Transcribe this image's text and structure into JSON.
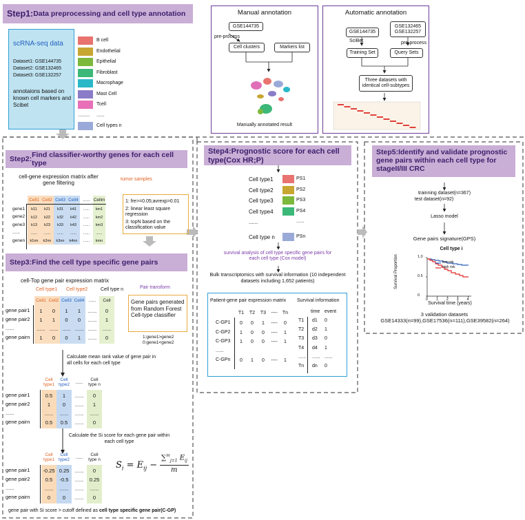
{
  "step1": {
    "title_bold": "Step1:",
    "title_rest": "Data preprocessing and cell type annotation",
    "data_title": "scRNA-seq  data",
    "datasets": [
      "Dataset1: GSE144735",
      "Dataset2: GSE132465",
      "Dataset3: GSE132257"
    ],
    "note": "annotaions based on known cell markers and Scibet",
    "legend": [
      {
        "label": "B cell",
        "color": "#e8736f"
      },
      {
        "label": "Endothelial",
        "color": "#c8a632"
      },
      {
        "label": "Epithelial",
        "color": "#7cb83c"
      },
      {
        "label": "Fibroblast",
        "color": "#3cb878"
      },
      {
        "label": "Macrophage",
        "color": "#2ab8c8"
      },
      {
        "label": "Mast Cell",
        "color": "#8a7cc8"
      },
      {
        "label": "Tcell",
        "color": "#e870b8"
      },
      {
        "label": "......",
        "color": ""
      },
      {
        "label": "Cell types n",
        "color": "#9aaad8"
      }
    ]
  },
  "manual": {
    "title": "Manual annotation",
    "gse": "GSE144735",
    "preprocess": "pre-process",
    "clusters": "Cell clusters",
    "markers": "Markers list",
    "result": "Manually annotated result"
  },
  "auto": {
    "title": "Automatic annotation",
    "gse_left": "GSE144735",
    "gse_right": [
      "GSE132465",
      "GSE132257"
    ],
    "scibet": "SciBet",
    "preprocess": "pre-process",
    "training": "Training Set",
    "query": "Query Sets",
    "result": "Three datasets with identical cell-subtypes"
  },
  "step2": {
    "title_bold": "Step2:",
    "title_rest": "Find classifier-worthy genes for each cell type",
    "matrix_title": "cell-gene expression matrix after gene filtering",
    "tumor": "tumor samples",
    "cols": [
      "Cell1",
      "Cell2",
      "Cell3",
      "Cell4",
      "......",
      "Cellm"
    ],
    "rows": [
      "gene1",
      "gene2",
      "gene3",
      "......",
      "genen"
    ],
    "values": [
      [
        "k11",
        "k21",
        "k31",
        "k41",
        "......",
        "km1"
      ],
      [
        "k12",
        "k22",
        "k32",
        "k42",
        "......",
        "km2"
      ],
      [
        "k13",
        "k23",
        "k33",
        "k43",
        "......",
        "km3"
      ],
      [
        "......",
        "......",
        "......",
        "......",
        "......",
        "......"
      ],
      [
        "k1nn",
        "k2nn",
        "k3nn",
        "k4nn",
        "......",
        "kmn"
      ]
    ],
    "criteria": [
      "1: fre>=0.05;avrexp>0.01",
      "2: linear least square regression",
      "3: topN based on the classification value"
    ]
  },
  "step3": {
    "title_bold": "Step3:",
    "title_rest": "Find the cell type specific gene pairs",
    "matrix_title": "cell-Top gene pair expression matrix",
    "types": [
      "Cell type1",
      "Cell type2",
      "Cell type n"
    ],
    "cols": [
      "Cell1",
      "Cell2",
      "Cell3",
      "Cell4",
      "......",
      "Cell"
    ],
    "rows": [
      "gene pair1",
      "gene pair2",
      "......",
      "gene pairn"
    ],
    "values": [
      [
        "1",
        "0",
        "1",
        "1",
        "......",
        "0"
      ],
      [
        "1",
        "1",
        "0",
        "0",
        "......",
        "1"
      ],
      [
        "......",
        "......",
        "......",
        "......",
        "......",
        "......"
      ],
      [
        "1",
        "0",
        "0",
        "1",
        "......",
        "0"
      ]
    ],
    "pair_transform": "Pair transform",
    "generated": "Gene pairs generated from Random Forest Cell-type classifier",
    "code1": "1:gene1>gene2",
    "code0": "0:gene1<gene2",
    "calc_mean": "Calculate mean rank value of gene pair in all cells for each cell type",
    "mean_cols": [
      "Cell type1",
      "Cell type2",
      "......",
      "Cell type n"
    ],
    "mean_values": [
      [
        "0.5",
        "1",
        "......",
        "0"
      ],
      [
        "1",
        "0",
        "......",
        "1"
      ],
      [
        "......",
        "......",
        "......",
        "......"
      ],
      [
        "0.5",
        "0.5",
        "......",
        "0"
      ]
    ],
    "calc_si": "Calculate the Si score for each gene pair within each cell type",
    "si_values": [
      [
        "-0.25",
        "0.25",
        "......",
        "0"
      ],
      [
        "0.5",
        "-0.5",
        "......",
        "0.25"
      ],
      [
        "......",
        "......",
        "......",
        "......"
      ],
      [
        "0",
        "0",
        "......",
        "0"
      ]
    ],
    "formula_lhs": "S",
    "footer_pre": "gene pair with Si score > cutoff defined as ",
    "footer_bold": "cell type specific gene pair(C-GP)"
  },
  "step4": {
    "title_bold": "Step4:",
    "title_rest": "Prognostic score for each cell type(Cox HR;P)",
    "types": [
      "Cell type1",
      "Cell type2",
      "Cell type3",
      "Cell type4",
      "......",
      "Cell type n"
    ],
    "ps": [
      "PS1",
      "PS2",
      "PS3",
      "PS4",
      "......",
      "PSn"
    ],
    "ps_colors": [
      "#e8736f",
      "#c8a632",
      "#7cb83c",
      "#3cb878",
      "",
      "#9aaad8"
    ],
    "survival_note": "survival analysis of cell type specific gene pairs for each cell type (Cox model)",
    "bulk": "Bulk transcriptomics with survival information (10 independent datasets including 1,652 patients)",
    "pgm_title": "Patient-gene pair expression matrix",
    "pgm_cols": [
      "T1",
      "T2",
      "T3",
      "----",
      "Tn"
    ],
    "pgm_rows": [
      "C-GP1",
      "C-GP2",
      "C-GP3",
      "......",
      "C-GPn"
    ],
    "pgm_values": [
      [
        "0",
        "0",
        "1",
        "----",
        "0"
      ],
      [
        "1",
        "0",
        "0",
        "----",
        "1"
      ],
      [
        "1",
        "0",
        "0",
        "----",
        "1"
      ],
      [
        "",
        "",
        "",
        "",
        ""
      ],
      [
        "0",
        "1",
        "0",
        "----",
        "1"
      ]
    ],
    "surv_title": "Survival information",
    "surv_cols": [
      "time",
      "event"
    ],
    "surv_rows": [
      "T1",
      "T2",
      "T3",
      "T4",
      "......",
      "Tn"
    ],
    "surv_values": [
      [
        "d1",
        "0"
      ],
      [
        "d2",
        "1"
      ],
      [
        "d3",
        "0"
      ],
      [
        "d4",
        "1"
      ],
      [
        "......",
        "......"
      ],
      [
        "dn",
        "0"
      ]
    ]
  },
  "step5": {
    "title_bold": "Step5:",
    "title_rest": "Identify and validate prognostic gene pairs within each cell type for stageII/III CRC",
    "training": "trainning dataset(n=367)",
    "test": "test dataset(n=92)",
    "lasso": "Lasso model",
    "gps": "Gene pairs signature(GPS)",
    "km_title": "Cell type i",
    "km_ylabel": "Survival Proportion",
    "km_xlabel": "Survival time (years)",
    "km_legend": [
      "low risk",
      "high risk"
    ],
    "km_xticks": [
      "0",
      "1",
      "2",
      "3",
      "4"
    ],
    "km_yticks": [
      "0",
      "0.5",
      "1.0"
    ],
    "validation": "3 validation datasets",
    "validation_ids": "GSE14333(n=99),GSE17536(n=111),GSE39582(n=264)"
  }
}
